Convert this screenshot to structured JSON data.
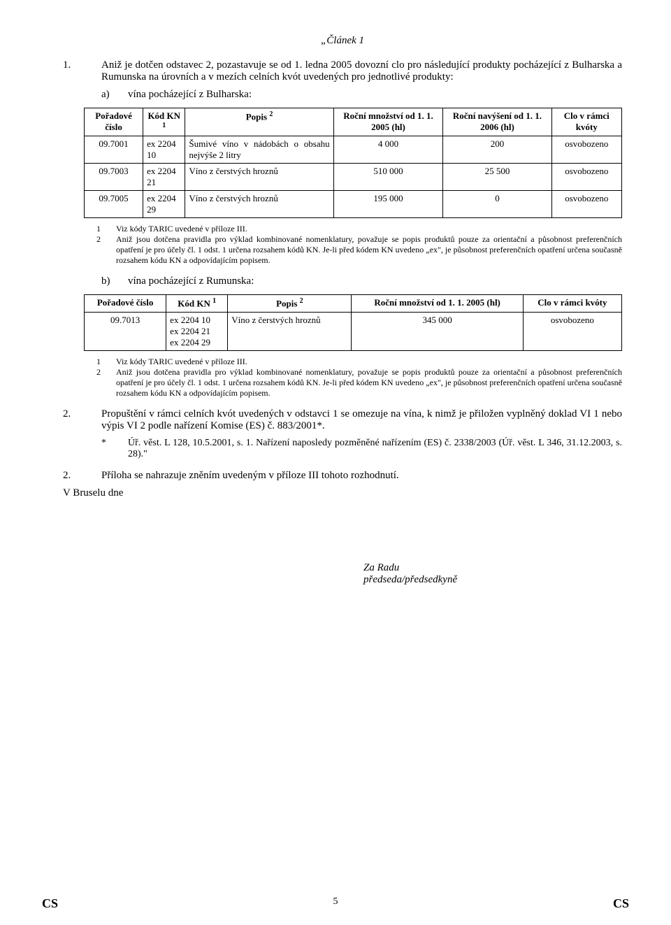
{
  "article_title": "„Článek 1",
  "p1_num": "1.",
  "p1_text": "Aniž je dotčen odstavec 2, pozastavuje se od 1. ledna 2005 dovozní clo pro následující produkty pocházející z Bulharska a Rumunska na úrovních a v mezích celních kvót uvedených pro jednotlivé produkty:",
  "a_label": "a)",
  "a_text": "vína pocházející z Bulharska:",
  "table_a": {
    "headers": {
      "c1": "Pořadové číslo",
      "c2": "Kód KN ",
      "c2_sup": "1",
      "c3": "Popis ",
      "c3_sup": "2",
      "c4": "Roční množství od 1. 1. 2005 (hl)",
      "c5": "Roční navýšení od 1. 1. 2006 (hl)",
      "c6": "Clo v rámci kvóty"
    },
    "rows": [
      {
        "c1": "09.7001",
        "c2": "ex 2204 10",
        "c3": "Šumivé víno v nádobách o obsahu nejvýše 2 litry",
        "c4": "4 000",
        "c5": "200",
        "c6": "osvobozeno"
      },
      {
        "c1": "09.7003",
        "c2": "ex 2204 21",
        "c3": "Víno z čerstvých hroznů",
        "c4": "510 000",
        "c5": "25 500",
        "c6": "osvobozeno"
      },
      {
        "c1": "09.7005",
        "c2": "ex 2204 29",
        "c3": "Víno z čerstvých hroznů",
        "c4": "195 000",
        "c5": "0",
        "c6": "osvobozeno"
      }
    ]
  },
  "fn_a_1_num": "1",
  "fn_a_1": "Viz kódy TARIC uvedené v příloze III.",
  "fn_a_2_num": "2",
  "fn_a_2": "Aniž jsou dotčena pravidla pro výklad kombinované nomenklatury, považuje se popis produktů pouze za orientační a působnost preferenčních opatření je pro účely čl. 1 odst. 1 určena rozsahem kódů KN. Je-li před kódem KN uvedeno „ex\", je působnost preferenčních opatření určena současně rozsahem kódu KN a odpovídajícím popisem.",
  "b_label": "b)",
  "b_text": "vína pocházející z Rumunska:",
  "table_b": {
    "headers": {
      "c1": "Pořadové číslo",
      "c2": "Kód KN ",
      "c2_sup": "1",
      "c3": "Popis ",
      "c3_sup": "2",
      "c4": "Roční množství od 1. 1. 2005 (hl)",
      "c5": "Clo v rámci kvóty"
    },
    "rows": [
      {
        "c1": "09.7013",
        "c2": "ex 2204 10\nex 2204 21\nex 2204 29",
        "c3": "Víno z čerstvých hroznů",
        "c4": "345 000",
        "c5": "osvobozeno"
      }
    ]
  },
  "fn_b_1_num": "1",
  "fn_b_1": "Viz kódy TARIC uvedené v příloze III.",
  "fn_b_2_num": "2",
  "fn_b_2": "Aniž jsou dotčena pravidla pro výklad kombinované nomenklatury, považuje se popis produktů pouze za orientační a působnost preferenčních opatření je pro účely čl. 1 odst. 1 určena rozsahem kódů KN. Je-li před kódem KN uvedeno „ex\", je působnost preferenčních opatření určena současně rozsahem kódu KN a odpovídajícím popisem.",
  "p2_num": "2.",
  "p2_text": "Propuštění v rámci celních kvót uvedených v odstavci 1 se omezuje na vína, k nimž je přiložen vyplněný doklad VI 1 nebo výpis VI 2 podle nařízení Komise (ES) č. 883/2001*.",
  "ast_mark": "*",
  "ast_text": "Úř. věst. L 128, 10.5.2001, s. 1. Nařízení naposledy pozměněné nařízením (ES) č. 2338/2003 (Úř. věst. L 346, 31.12.2003, s. 28).\"",
  "p3_num": "2.",
  "p3_text": "Příloha se nahrazuje zněním uvedeným v příloze III tohoto rozhodnutí.",
  "brussels": "V Bruselu dne",
  "sig1": "Za Radu",
  "sig2": "předseda/předsedkyně",
  "footer_left": "CS",
  "footer_page": "5",
  "footer_right": "CS"
}
